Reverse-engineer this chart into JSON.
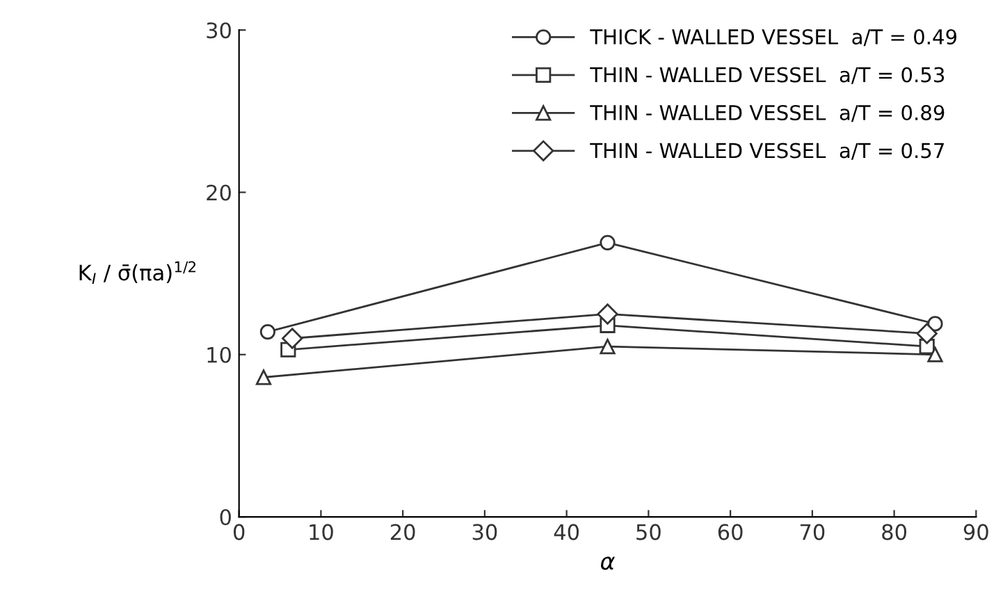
{
  "chart_data": {
    "type": "line",
    "xlabel": "α",
    "ylabel": "K$_{I}$ / σ̄(πa)$^{1/2}$",
    "xlim": [
      0,
      90
    ],
    "ylim": [
      0,
      30
    ],
    "xticks": [
      0,
      10,
      20,
      30,
      40,
      50,
      60,
      70,
      80,
      90
    ],
    "yticks": [
      0,
      10,
      20,
      30
    ],
    "grid": false,
    "legend": "top right",
    "series": [
      {
        "name": "THICK - WALLED VESSEL  a/T = 0.49",
        "color": "#333333",
        "marker": "circle",
        "x": [
          3.5,
          45,
          85
        ],
        "values": [
          11.4,
          16.9,
          11.9
        ]
      },
      {
        "name": "THIN - WALLED VESSEL  a/T = 0.53",
        "color": "#333333",
        "marker": "square",
        "x": [
          6,
          45,
          84
        ],
        "values": [
          10.3,
          11.8,
          10.5
        ]
      },
      {
        "name": "THIN - WALLED VESSEL  a/T = 0.89",
        "color": "#333333",
        "marker": "triangle",
        "x": [
          3,
          45,
          85
        ],
        "values": [
          8.6,
          10.5,
          10.0
        ]
      },
      {
        "name": "THIN - WALLED VESSEL  a/T = 0.57",
        "color": "#333333",
        "marker": "diamond",
        "x": [
          6.5,
          45,
          84
        ],
        "values": [
          11.0,
          12.5,
          11.3
        ]
      }
    ]
  }
}
